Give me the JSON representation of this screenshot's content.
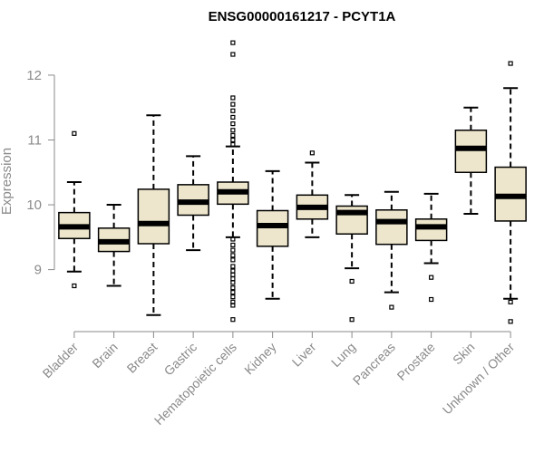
{
  "chart_data": {
    "type": "boxplot",
    "title": "ENSG00000161217 - PCYT1A",
    "xlabel": "",
    "ylabel": "Expression",
    "ylim": [
      8.1,
      12.6
    ],
    "yticks": [
      9,
      10,
      11,
      12
    ],
    "grid": false,
    "box_color": "#ede6cc",
    "categories": [
      "Bladder",
      "Brain",
      "Breast",
      "Gastric",
      "Hematopoietic cells",
      "Kidney",
      "Liver",
      "Lung",
      "Pancreas",
      "Prostate",
      "Skin",
      "Unknown / Other"
    ],
    "boxes": [
      {
        "name": "Bladder",
        "whisker_low": 8.97,
        "q1": 9.48,
        "median": 9.66,
        "q3": 9.88,
        "whisker_high": 10.35,
        "outliers": [
          11.1,
          8.75
        ]
      },
      {
        "name": "Brain",
        "whisker_low": 8.75,
        "q1": 9.28,
        "median": 9.43,
        "q3": 9.64,
        "whisker_high": 10.0,
        "outliers": []
      },
      {
        "name": "Breast",
        "whisker_low": 8.3,
        "q1": 9.4,
        "median": 9.71,
        "q3": 10.24,
        "whisker_high": 11.38,
        "outliers": []
      },
      {
        "name": "Gastric",
        "whisker_low": 9.3,
        "q1": 9.84,
        "median": 10.04,
        "q3": 10.31,
        "whisker_high": 10.75,
        "outliers": []
      },
      {
        "name": "Hematopoietic cells",
        "whisker_low": 9.5,
        "q1": 10.01,
        "median": 10.2,
        "q3": 10.35,
        "whisker_high": 10.9,
        "outliers": [
          12.5,
          12.32,
          11.65,
          11.55,
          11.45,
          11.35,
          11.25,
          11.15,
          11.07,
          11.0,
          10.93,
          9.47,
          9.38,
          9.3,
          9.22,
          9.15,
          9.05,
          8.98,
          8.92,
          8.86,
          8.8,
          8.72,
          8.65,
          8.58,
          8.5,
          8.45,
          8.23
        ]
      },
      {
        "name": "Kidney",
        "whisker_low": 8.55,
        "q1": 9.36,
        "median": 9.68,
        "q3": 9.91,
        "whisker_high": 10.52,
        "outliers": []
      },
      {
        "name": "Liver",
        "whisker_low": 9.5,
        "q1": 9.78,
        "median": 9.96,
        "q3": 10.15,
        "whisker_high": 10.65,
        "outliers": [
          10.8
        ]
      },
      {
        "name": "Lung",
        "whisker_low": 9.02,
        "q1": 9.55,
        "median": 9.88,
        "q3": 9.98,
        "whisker_high": 10.15,
        "outliers": [
          8.82,
          8.23
        ]
      },
      {
        "name": "Pancreas",
        "whisker_low": 8.65,
        "q1": 9.39,
        "median": 9.74,
        "q3": 9.92,
        "whisker_high": 10.2,
        "outliers": [
          8.42
        ]
      },
      {
        "name": "Prostate",
        "whisker_low": 9.1,
        "q1": 9.45,
        "median": 9.66,
        "q3": 9.78,
        "whisker_high": 10.17,
        "outliers": [
          8.88,
          8.54
        ]
      },
      {
        "name": "Skin",
        "whisker_low": 9.86,
        "q1": 10.5,
        "median": 10.87,
        "q3": 11.15,
        "whisker_high": 11.5,
        "outliers": []
      },
      {
        "name": "Unknown / Other",
        "whisker_low": 8.55,
        "q1": 9.75,
        "median": 10.13,
        "q3": 10.58,
        "whisker_high": 11.8,
        "outliers": [
          12.18,
          8.5,
          8.2
        ]
      }
    ]
  }
}
